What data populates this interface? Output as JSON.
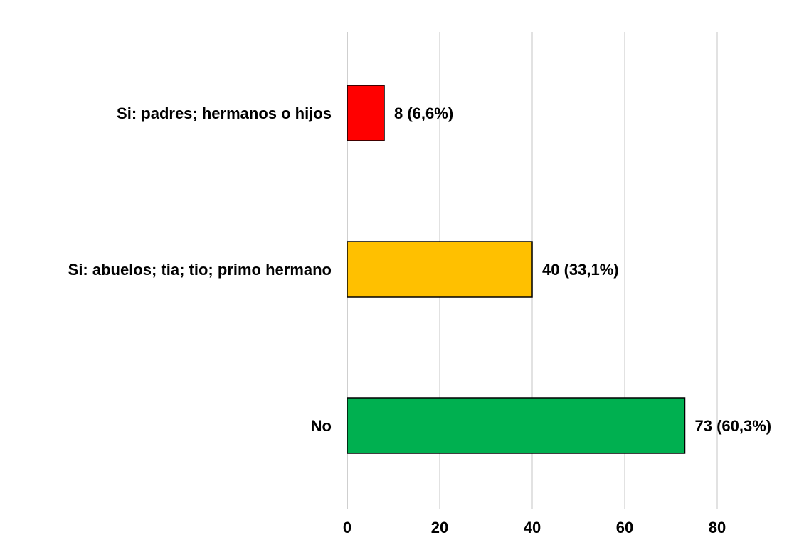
{
  "chart_data": {
    "type": "bar",
    "orientation": "horizontal",
    "categories": [
      "Si: padres; hermanos o hijos",
      "Si: abuelos; tia; tio; primo hermano",
      "No"
    ],
    "values": [
      8,
      40,
      73
    ],
    "data_labels": [
      "8 (6,6%)",
      "40 (33,1%)",
      "73 (60,3%)"
    ],
    "colors": [
      "#ff0000",
      "#ffc000",
      "#00b050"
    ],
    "x_ticks": [
      0,
      20,
      40,
      60,
      80
    ],
    "tick_labels": [
      "0",
      "20",
      "40",
      "60",
      "80"
    ],
    "xlim": [
      0,
      80
    ],
    "title": "",
    "xlabel": "",
    "ylabel": "",
    "grid": true,
    "legend": "none"
  }
}
